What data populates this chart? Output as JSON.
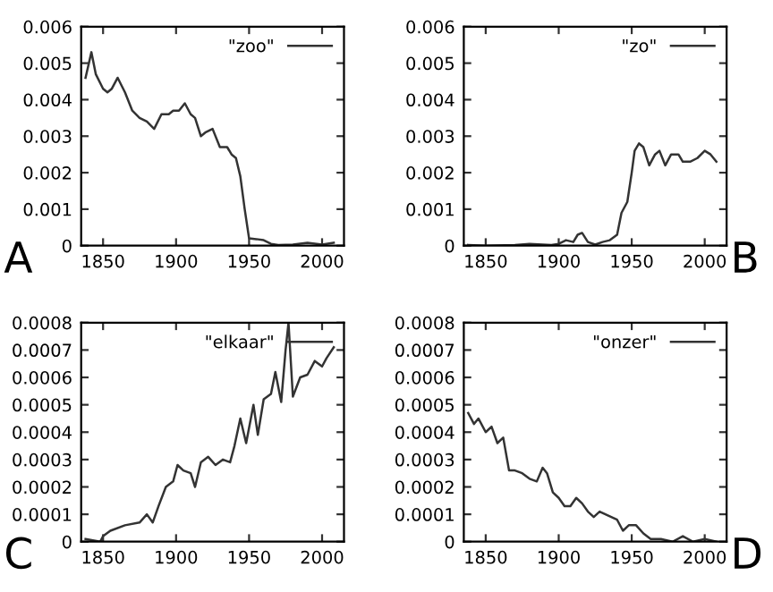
{
  "chart_data": [
    {
      "type": "line",
      "annotations": [
        "A"
      ],
      "legend": "top right",
      "xlim": [
        1835,
        2015
      ],
      "xticks": [
        1850,
        1900,
        1950,
        2000
      ],
      "ylim": [
        0,
        0.006
      ],
      "yticks": [
        0,
        0.001,
        0.002,
        0.003,
        0.004,
        0.005,
        0.006
      ],
      "series": [
        {
          "name": "\"zoo\"",
          "color": "#333333",
          "x": [
            1838,
            1842,
            1845,
            1850,
            1853,
            1856,
            1860,
            1865,
            1870,
            1875,
            1880,
            1885,
            1890,
            1895,
            1898,
            1902,
            1906,
            1910,
            1913,
            1917,
            1920,
            1925,
            1930,
            1935,
            1938,
            1941,
            1944,
            1947,
            1950,
            1955,
            1960,
            1965,
            1970,
            1980,
            1990,
            2000,
            2008
          ],
          "values": [
            0.0046,
            0.0053,
            0.0047,
            0.0043,
            0.0042,
            0.0043,
            0.0046,
            0.0042,
            0.0037,
            0.0035,
            0.0034,
            0.0032,
            0.0036,
            0.0036,
            0.0037,
            0.0037,
            0.0039,
            0.0036,
            0.0035,
            0.003,
            0.0031,
            0.0032,
            0.0027,
            0.0027,
            0.0025,
            0.0024,
            0.0019,
            0.001,
            0.0002,
            0.00018,
            0.00015,
            5e-05,
            2e-05,
            3e-05,
            8e-05,
            3e-05,
            8e-05
          ]
        }
      ]
    },
    {
      "type": "line",
      "annotations": [
        "B"
      ],
      "legend": "top right",
      "xlim": [
        1835,
        2015
      ],
      "xticks": [
        1850,
        1900,
        1950,
        2000
      ],
      "ylim": [
        0,
        0.006
      ],
      "yticks": [
        0,
        0.001,
        0.002,
        0.003,
        0.004,
        0.005,
        0.006
      ],
      "series": [
        {
          "name": "\"zo\"",
          "color": "#333333",
          "x": [
            1838,
            1850,
            1870,
            1880,
            1895,
            1900,
            1905,
            1910,
            1913,
            1916,
            1920,
            1925,
            1930,
            1935,
            1940,
            1943,
            1947,
            1950,
            1952,
            1955,
            1958,
            1962,
            1966,
            1969,
            1973,
            1977,
            1982,
            1985,
            1990,
            1995,
            2000,
            2004,
            2008
          ],
          "values": [
            2e-05,
            0.0,
            2e-05,
            5e-05,
            2e-05,
            5e-05,
            0.00015,
            0.0001,
            0.0003,
            0.00035,
            0.0001,
            3e-05,
            0.0001,
            0.00015,
            0.0003,
            0.0009,
            0.0012,
            0.002,
            0.0026,
            0.0028,
            0.0027,
            0.0022,
            0.0025,
            0.0026,
            0.0022,
            0.0025,
            0.0025,
            0.0023,
            0.0023,
            0.0024,
            0.0026,
            0.0025,
            0.0023
          ]
        }
      ]
    },
    {
      "type": "line",
      "annotations": [
        "C"
      ],
      "legend": "top right",
      "xlim": [
        1835,
        2015
      ],
      "xticks": [
        1850,
        1900,
        1950,
        2000
      ],
      "ylim": [
        0,
        0.0008
      ],
      "yticks": [
        0,
        0.0001,
        0.0002,
        0.0003,
        0.0004,
        0.0005,
        0.0006,
        0.0007,
        0.0008
      ],
      "series": [
        {
          "name": "\"elkaar\"",
          "color": "#333333",
          "x": [
            1838,
            1848,
            1850,
            1855,
            1865,
            1875,
            1880,
            1884,
            1888,
            1893,
            1898,
            1901,
            1905,
            1910,
            1913,
            1917,
            1922,
            1927,
            1932,
            1937,
            1940,
            1944,
            1948,
            1953,
            1956,
            1960,
            1965,
            1968,
            1972,
            1975,
            1977,
            1980,
            1985,
            1990,
            1995,
            2000,
            2003,
            2008
          ],
          "values": [
            1e-05,
            0.0,
            2e-05,
            4e-05,
            6e-05,
            7e-05,
            0.0001,
            7e-05,
            0.00013,
            0.0002,
            0.00022,
            0.00028,
            0.00026,
            0.00025,
            0.0002,
            0.00029,
            0.00031,
            0.00028,
            0.0003,
            0.00029,
            0.00035,
            0.00045,
            0.00036,
            0.0005,
            0.00039,
            0.00052,
            0.00054,
            0.00062,
            0.00051,
            0.0007,
            0.0008,
            0.00053,
            0.0006,
            0.00061,
            0.00066,
            0.00064,
            0.00067,
            0.00071
          ]
        }
      ]
    },
    {
      "type": "line",
      "annotations": [
        "D"
      ],
      "legend": "top right",
      "xlim": [
        1835,
        2015
      ],
      "xticks": [
        1850,
        1900,
        1950,
        2000
      ],
      "ylim": [
        0,
        0.0008
      ],
      "yticks": [
        0,
        0.0001,
        0.0002,
        0.0003,
        0.0004,
        0.0005,
        0.0006,
        0.0007,
        0.0008
      ],
      "series": [
        {
          "name": "\"onzer\"",
          "color": "#333333",
          "x": [
            1838,
            1842,
            1845,
            1850,
            1854,
            1858,
            1862,
            1866,
            1870,
            1875,
            1880,
            1885,
            1889,
            1892,
            1896,
            1900,
            1904,
            1908,
            1912,
            1916,
            1920,
            1924,
            1928,
            1932,
            1936,
            1940,
            1944,
            1948,
            1953,
            1958,
            1963,
            1970,
            1978,
            1985,
            1992,
            2000,
            2008
          ],
          "values": [
            0.00047,
            0.00043,
            0.00045,
            0.0004,
            0.00042,
            0.00036,
            0.00038,
            0.00026,
            0.00026,
            0.00025,
            0.00023,
            0.00022,
            0.00027,
            0.00025,
            0.00018,
            0.00016,
            0.00013,
            0.00013,
            0.00016,
            0.00014,
            0.00011,
            9e-05,
            0.00011,
            0.0001,
            9e-05,
            8e-05,
            4e-05,
            6e-05,
            6e-05,
            3e-05,
            1e-05,
            1e-05,
            0.0,
            2e-05,
            0.0,
            1e-05,
            0.0
          ]
        }
      ]
    }
  ]
}
